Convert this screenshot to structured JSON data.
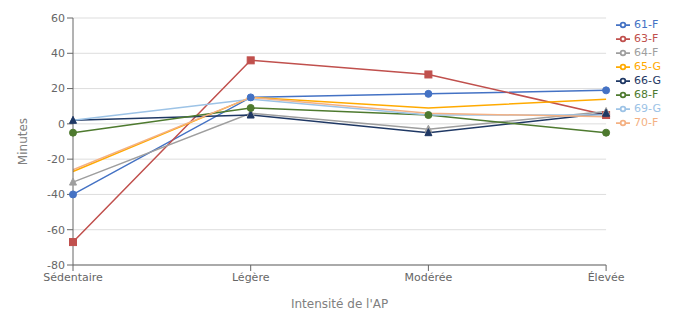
{
  "chart_data": {
    "type": "line",
    "categories": [
      "Sédentaire",
      "Légère",
      "Modérée",
      "Élevée"
    ],
    "series": [
      {
        "name": "61-F",
        "color": "#4472C4",
        "marker": "circle",
        "values": [
          -40,
          15,
          17,
          19
        ]
      },
      {
        "name": "63-F",
        "color": "#C0504D",
        "marker": "square",
        "values": [
          -67,
          36,
          28,
          5
        ]
      },
      {
        "name": "64-F",
        "color": "#9E9E9E",
        "marker": "triangle",
        "values": [
          -33,
          6,
          -3,
          7
        ]
      },
      {
        "name": "65-G",
        "color": "#FFAA00",
        "marker": "none",
        "values": [
          -27,
          15,
          9,
          14
        ]
      },
      {
        "name": "66-G",
        "color": "#1F3864",
        "marker": "triangle",
        "values": [
          2,
          5,
          -5,
          6
        ]
      },
      {
        "name": "68-F",
        "color": "#4E7A2F",
        "marker": "circle",
        "values": [
          -5,
          9,
          5,
          -5
        ]
      },
      {
        "name": "69-G",
        "color": "#9DC3E6",
        "marker": "none",
        "values": [
          2,
          14,
          5,
          5
        ]
      },
      {
        "name": "70-F",
        "color": "#F4B183",
        "marker": "none",
        "values": [
          -26,
          15,
          6,
          4
        ]
      }
    ],
    "xlabel": "Intensité de l'AP",
    "ylabel": "Minutes",
    "ylim": [
      -80,
      60
    ],
    "yticks": [
      -80,
      -60,
      -40,
      -20,
      0,
      20,
      40,
      60
    ],
    "grid": true,
    "legend": "right"
  }
}
